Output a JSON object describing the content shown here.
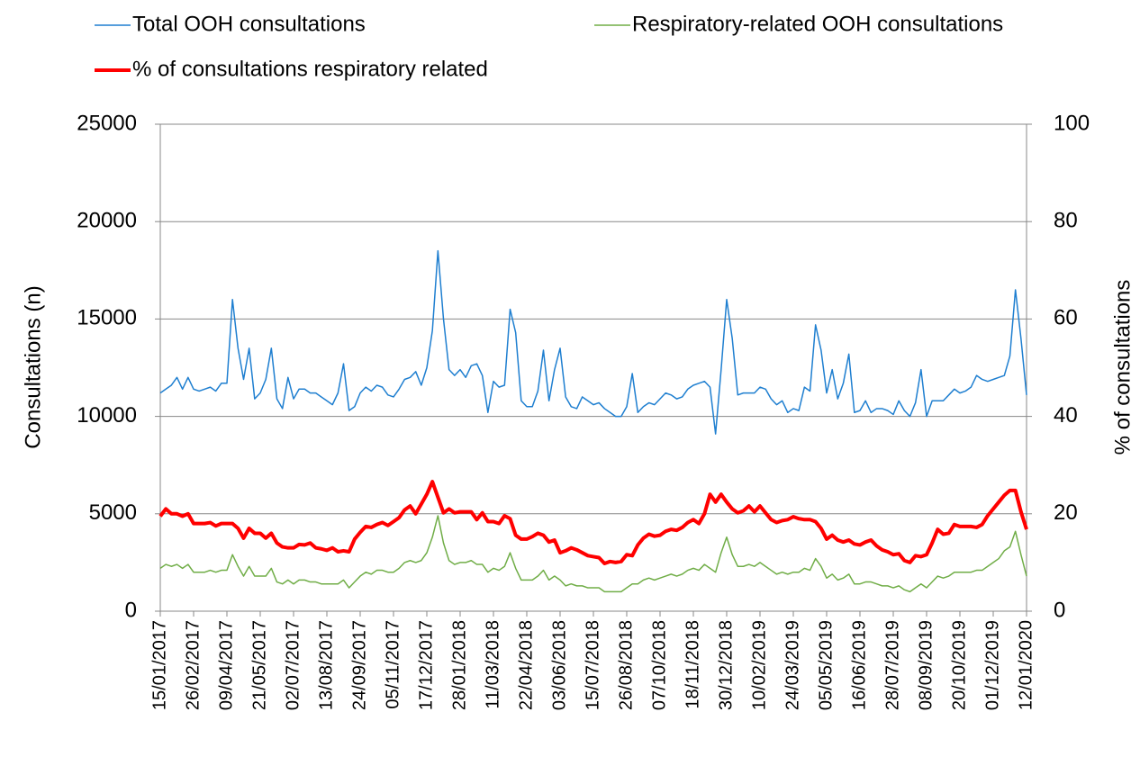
{
  "chart_data": {
    "type": "line",
    "categories": [
      "15/01/2017",
      null,
      null,
      null,
      null,
      null,
      "26/02/2017",
      null,
      null,
      null,
      null,
      null,
      "09/04/2017",
      null,
      null,
      null,
      null,
      null,
      "21/05/2017",
      null,
      null,
      null,
      null,
      null,
      "02/07/2017",
      null,
      null,
      null,
      null,
      null,
      "13/08/2017",
      null,
      null,
      null,
      null,
      null,
      "24/09/2017",
      null,
      null,
      null,
      null,
      null,
      "05/11/2017",
      null,
      null,
      null,
      null,
      null,
      "17/12/2017",
      null,
      null,
      null,
      null,
      null,
      "28/01/2018",
      null,
      null,
      null,
      null,
      null,
      "11/03/2018",
      null,
      null,
      null,
      null,
      null,
      "22/04/2018",
      null,
      null,
      null,
      null,
      null,
      "03/06/2018",
      null,
      null,
      null,
      null,
      null,
      "15/07/2018",
      null,
      null,
      null,
      null,
      null,
      "26/08/2018",
      null,
      null,
      null,
      null,
      null,
      "07/10/2018",
      null,
      null,
      null,
      null,
      null,
      "18/11/2018",
      null,
      null,
      null,
      null,
      null,
      "30/12/2018",
      null,
      null,
      null,
      null,
      null,
      "10/02/2019",
      null,
      null,
      null,
      null,
      null,
      "24/03/2019",
      null,
      null,
      null,
      null,
      null,
      "05/05/2019",
      null,
      null,
      null,
      null,
      null,
      "16/06/2019",
      null,
      null,
      null,
      null,
      null,
      "28/07/2019",
      null,
      null,
      null,
      null,
      null,
      "08/09/2019",
      null,
      null,
      null,
      null,
      null,
      "20/10/2019",
      null,
      null,
      null,
      null,
      null,
      "01/12/2019",
      null,
      null,
      null,
      null,
      null,
      "12/01/2020"
    ],
    "series": [
      {
        "name": "Total OOH consultations",
        "color": "#1f7fd0",
        "width": 1.5,
        "values": [
          11200,
          11400,
          11600,
          12000,
          11400,
          12000,
          11400,
          11300,
          11400,
          11500,
          11300,
          11700,
          11700,
          16000,
          13500,
          11900,
          13500,
          10900,
          11200,
          11900,
          13500,
          10900,
          10400,
          12000,
          10900,
          11400,
          11400,
          11200,
          11200,
          11000,
          10800,
          10600,
          11200,
          12700,
          10300,
          10500,
          11200,
          11500,
          11300,
          11600,
          11500,
          11100,
          11000,
          11400,
          11900,
          12000,
          12300,
          11600,
          12500,
          14400,
          18500,
          15000,
          12400,
          12100,
          12400,
          12000,
          12600,
          12700,
          12100,
          10200,
          11800,
          11500,
          11600,
          15500,
          14300,
          10800,
          10500,
          10500,
          11300,
          13400,
          10800,
          12400,
          13500,
          11000,
          10500,
          10400,
          11000,
          10800,
          10600,
          10700,
          10400,
          10200,
          10000,
          10000,
          10500,
          12200,
          10200,
          10500,
          10700,
          10600,
          10900,
          11200,
          11100,
          10900,
          11000,
          11400,
          11600,
          11700,
          11800,
          11500,
          9100,
          12400,
          16000,
          14000,
          11100,
          11200,
          11200,
          11200,
          11500,
          11400,
          10900,
          10600,
          10800,
          10200,
          10400,
          10300,
          11500,
          11300,
          14700,
          13400,
          11200,
          12400,
          10900,
          11700,
          13200,
          10200,
          10300,
          10800,
          10200,
          10400,
          10400,
          10300,
          10100,
          10800,
          10300,
          10000,
          10700,
          12400,
          10000,
          10800,
          10800,
          10800,
          11100,
          11400,
          11200,
          11300,
          11500,
          12100,
          11900,
          11800,
          11900,
          12000,
          12100,
          13100,
          16500,
          14000,
          11100
        ]
      },
      {
        "name": "Respiratory-related OOH consultations",
        "color": "#70ad47",
        "width": 1.5,
        "values": [
          2200,
          2400,
          2300,
          2400,
          2200,
          2400,
          2000,
          2000,
          2000,
          2100,
          2000,
          2100,
          2100,
          2900,
          2300,
          1800,
          2300,
          1800,
          1800,
          1800,
          2200,
          1500,
          1400,
          1600,
          1400,
          1600,
          1600,
          1500,
          1500,
          1400,
          1400,
          1400,
          1400,
          1600,
          1200,
          1500,
          1800,
          2000,
          1900,
          2100,
          2100,
          2000,
          2000,
          2200,
          2500,
          2600,
          2500,
          2600,
          3000,
          3800,
          4900,
          3500,
          2600,
          2400,
          2500,
          2500,
          2600,
          2400,
          2400,
          2000,
          2200,
          2100,
          2300,
          3000,
          2200,
          1600,
          1600,
          1600,
          1800,
          2100,
          1600,
          1800,
          1600,
          1300,
          1400,
          1300,
          1300,
          1200,
          1200,
          1200,
          1000,
          1000,
          1000,
          1000,
          1200,
          1400,
          1400,
          1600,
          1700,
          1600,
          1700,
          1800,
          1900,
          1800,
          1900,
          2100,
          2200,
          2100,
          2400,
          2200,
          2000,
          3000,
          3800,
          2900,
          2300,
          2300,
          2400,
          2300,
          2500,
          2300,
          2100,
          1900,
          2000,
          1900,
          2000,
          2000,
          2200,
          2100,
          2700,
          2300,
          1700,
          1900,
          1600,
          1700,
          1900,
          1400,
          1400,
          1500,
          1500,
          1400,
          1300,
          1300,
          1200,
          1300,
          1100,
          1000,
          1200,
          1400,
          1200,
          1500,
          1800,
          1700,
          1800,
          2000,
          2000,
          2000,
          2000,
          2100,
          2100,
          2300,
          2500,
          2700,
          3100,
          3300,
          4100,
          2900,
          1800
        ]
      },
      {
        "name": "% of consultations respiratory related",
        "color": "#ff0000",
        "width": 4,
        "axis": "y2",
        "values": [
          19.5,
          21,
          20,
          20,
          19.5,
          20,
          18,
          18,
          18,
          18.2,
          17.5,
          18,
          18,
          18,
          17,
          15,
          17,
          16,
          16,
          15,
          16,
          14,
          13.2,
          13,
          13,
          13.7,
          13.6,
          14,
          13,
          12.8,
          12.5,
          13,
          12.2,
          12.4,
          12.2,
          14.8,
          16.2,
          17.4,
          17.2,
          17.8,
          18.2,
          17.6,
          18.4,
          19.2,
          20.8,
          21.6,
          20,
          22,
          24,
          26.6,
          23.4,
          20.2,
          21,
          20.2,
          20.4,
          20.4,
          20.4,
          18.8,
          20.2,
          18.4,
          18.4,
          18,
          19.6,
          19,
          15.6,
          14.8,
          14.8,
          15.3,
          16,
          15.6,
          14.2,
          14.6,
          12,
          12.4,
          13,
          12.6,
          12,
          11.4,
          11.2,
          11,
          9.8,
          10.2,
          10,
          10.2,
          11.6,
          11.4,
          13.6,
          15,
          15.8,
          15.4,
          15.6,
          16.4,
          16.8,
          16.6,
          17.2,
          18.2,
          18.8,
          18,
          20,
          24,
          22.4,
          24,
          22.4,
          21,
          20.2,
          20.6,
          21.6,
          20.4,
          21.6,
          20.2,
          18.8,
          18.2,
          18.6,
          18.8,
          19.4,
          19,
          18.8,
          18.8,
          18.4,
          17,
          14.8,
          15.6,
          14.6,
          14.2,
          14.6,
          13.8,
          13.6,
          14.2,
          14.6,
          13.4,
          12.6,
          12.2,
          11.6,
          11.8,
          10.4,
          10,
          11.4,
          11.2,
          11.6,
          14,
          16.8,
          15.8,
          16,
          17.8,
          17.4,
          17.4,
          17.4,
          17.2,
          17.8,
          19.6,
          21,
          22.4,
          23.8,
          24.8,
          24.8,
          20.4,
          16.8
        ]
      }
    ],
    "ylabel": "Consultations (n)",
    "y2label": "% of consultations",
    "ylim": [
      0,
      25000
    ],
    "yticks": [
      0,
      5000,
      10000,
      15000,
      20000,
      25000
    ],
    "y2lim": [
      0,
      100
    ],
    "y2ticks": [
      0,
      20,
      40,
      60,
      80,
      100
    ],
    "grid": true,
    "legend": "top"
  }
}
